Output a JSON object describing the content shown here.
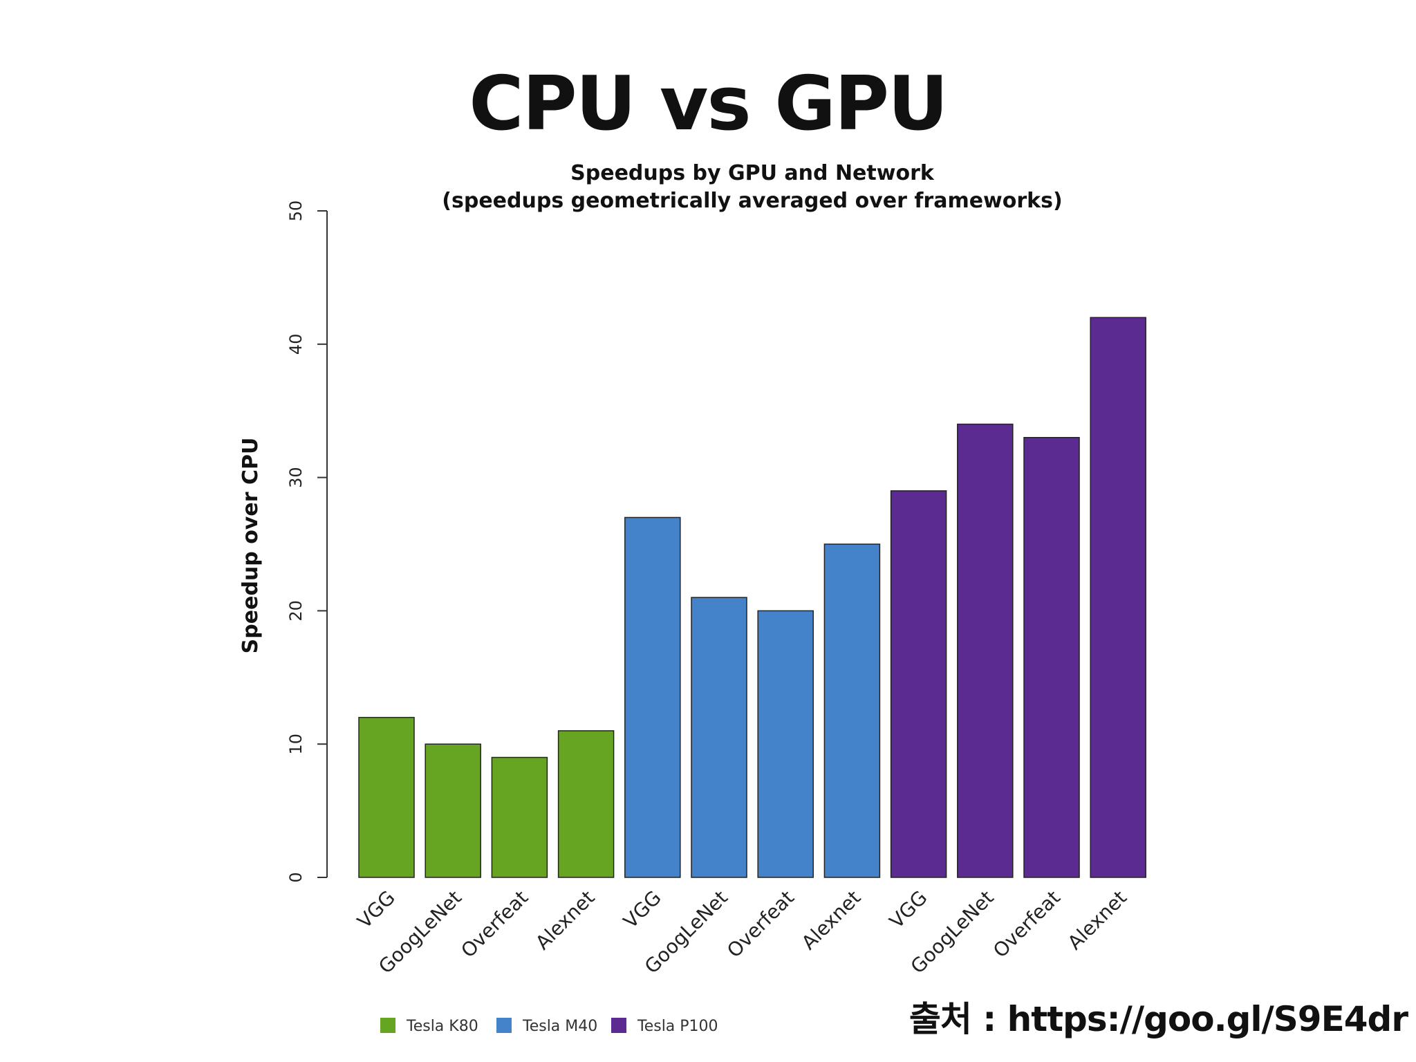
{
  "slide": {
    "title": "CPU vs GPU",
    "source": "출처 : https://goo.gl/S9E4dr"
  },
  "chart_data": {
    "type": "bar",
    "title": "Speedups by GPU and Network",
    "subtitle": "(speedups geometrically averaged over frameworks)",
    "xlabel": "",
    "ylabel": "Speedup over CPU",
    "ylim": [
      0,
      50
    ],
    "yticks": [
      0,
      10,
      20,
      30,
      40,
      50
    ],
    "categories": [
      "VGG",
      "GoogLeNet",
      "Overfeat",
      "Alexnet",
      "VGG",
      "GoogLeNet",
      "Overfeat",
      "Alexnet",
      "VGG",
      "GoogLeNet",
      "Overfeat",
      "Alexnet"
    ],
    "values": [
      12,
      10,
      9,
      11,
      27,
      21,
      20,
      25,
      29,
      34,
      33,
      42
    ],
    "bar_series": [
      0,
      0,
      0,
      0,
      1,
      1,
      1,
      1,
      2,
      2,
      2,
      2
    ],
    "series": [
      {
        "name": "Tesla K80",
        "color": "#66a522"
      },
      {
        "name": "Tesla M40",
        "color": "#4483c9"
      },
      {
        "name": "Tesla P100",
        "color": "#5b2b91"
      }
    ],
    "legend_position": "bottom-left",
    "grid": false
  }
}
